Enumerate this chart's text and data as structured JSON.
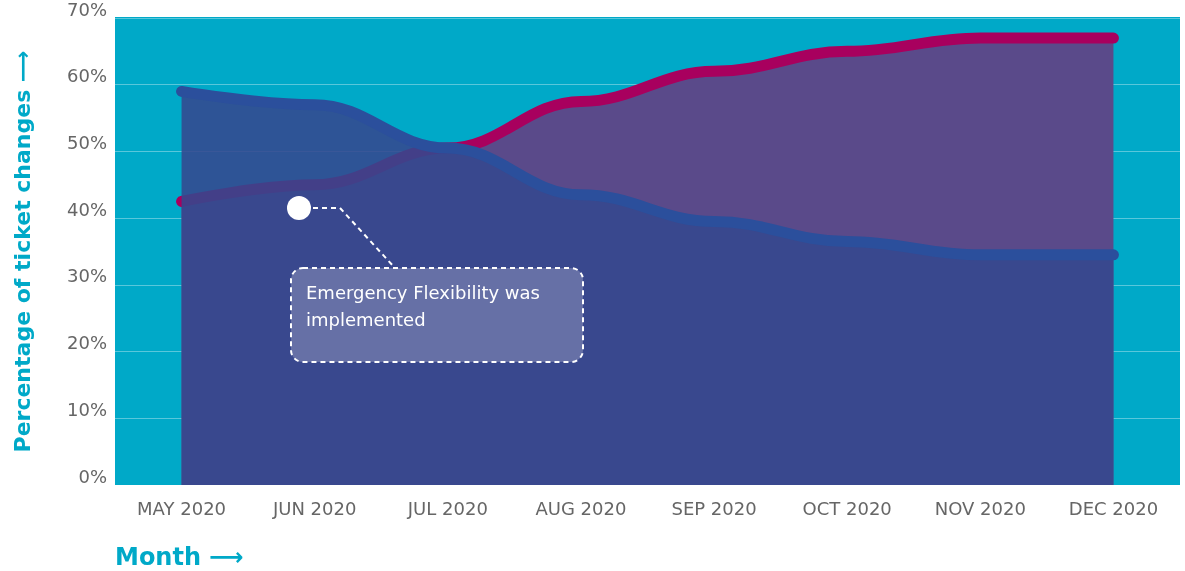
{
  "chart_data": {
    "type": "area",
    "xlabel": "Month ⟶",
    "ylabel": "Percentage of ticket changes ⟶",
    "categories": [
      "MAY 2020",
      "JUN 2020",
      "JUL 2020",
      "AUG 2020",
      "SEP 2020",
      "OCT 2020",
      "NOV 2020",
      "DEC 2020"
    ],
    "series": [
      {
        "color": "#a8005e",
        "values": [
          42.5,
          45,
          50.5,
          57.5,
          62,
          65,
          67,
          67
        ]
      },
      {
        "color": "#2b4f9c",
        "values": [
          59,
          57,
          50.5,
          43.5,
          39.5,
          36.5,
          34.5,
          34.5
        ]
      }
    ],
    "ylim": [
      0,
      70
    ],
    "yticks": [
      {
        "value": 0,
        "label": "0%"
      },
      {
        "value": 10,
        "label": "10%"
      },
      {
        "value": 20,
        "label": "20%"
      },
      {
        "value": 30,
        "label": "30%"
      },
      {
        "value": 40,
        "label": "40%"
      },
      {
        "value": 50,
        "label": "50%"
      },
      {
        "value": 60,
        "label": "60%"
      },
      {
        "value": 70,
        "label": "70%"
      }
    ],
    "grid": "y",
    "line_style": "solid",
    "annotations": [
      "Emergency Flexibility was implemented"
    ]
  }
}
